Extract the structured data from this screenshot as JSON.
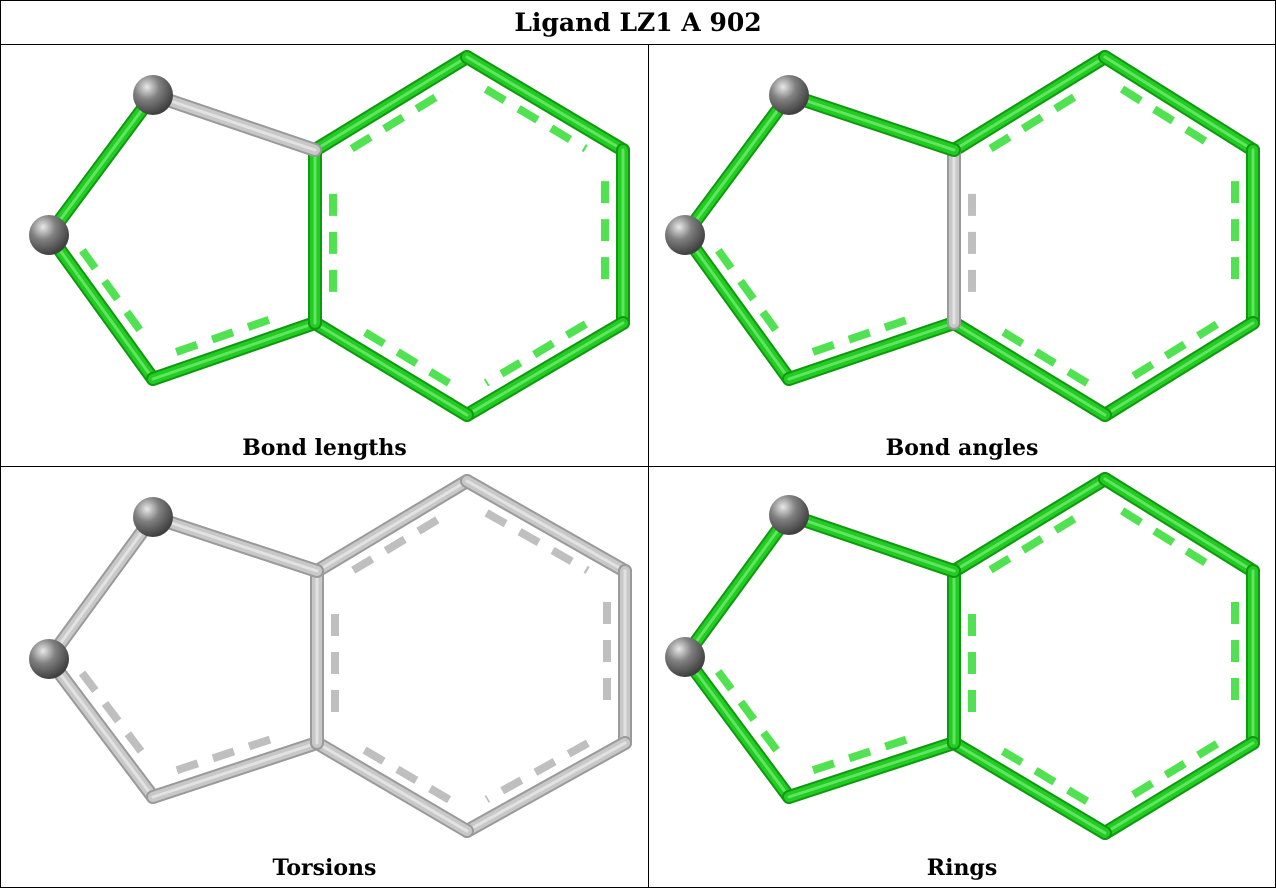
{
  "title": "Ligand LZ1 A 902",
  "colors": {
    "pass": "#22cc22",
    "pass_dash": "#33dd33",
    "neutral": "#c8c8c8",
    "neutral_dash": "#b4b4b4",
    "atom": "#808080",
    "grid": "#000000"
  },
  "panels": [
    {
      "caption": "Bond lengths",
      "bond_colors": [
        "pass",
        "pass",
        "pass",
        "pass",
        "pass",
        "pass",
        "pass",
        "pass",
        "pass",
        "neutral"
      ],
      "split_bond": 8
    },
    {
      "caption": "Bond angles",
      "bond_colors": [
        "pass",
        "pass",
        "pass",
        "pass",
        "pass",
        "pass",
        "pass",
        "pass",
        "neutral",
        "pass"
      ]
    },
    {
      "caption": "Torsions",
      "bond_colors": [
        "neutral",
        "neutral",
        "neutral",
        "neutral",
        "neutral",
        "neutral",
        "neutral",
        "neutral",
        "neutral",
        "neutral"
      ]
    },
    {
      "caption": "Rings",
      "bond_colors": [
        "pass",
        "pass",
        "pass",
        "pass",
        "pass",
        "pass",
        "pass",
        "pass",
        "pass",
        "pass"
      ]
    }
  ]
}
